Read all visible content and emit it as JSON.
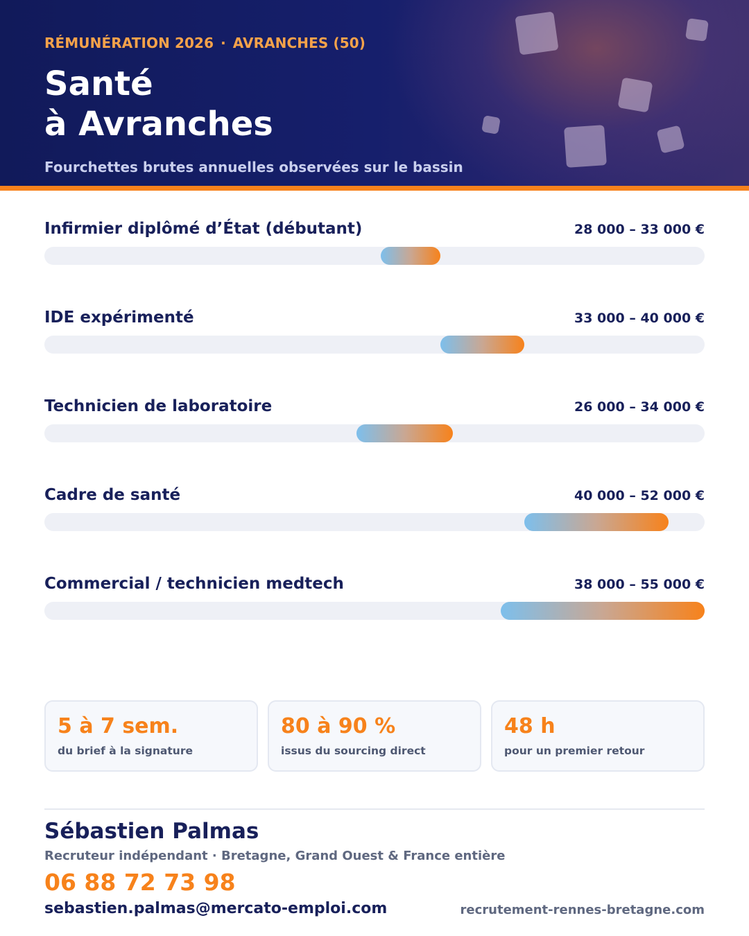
{
  "header": {
    "eyebrow_left": "RÉMUNÉRATION 2026",
    "eyebrow_separator": "·",
    "eyebrow_right": "AVRANCHES (50)",
    "title_line1": "Santé",
    "title_line2": "à Avranches",
    "subtitle": "Fourchettes brutes annuelles observées sur le bassin"
  },
  "colors": {
    "navy": "#18205a",
    "accent_orange": "#f7821b",
    "bar_start_blue": "#7dbfec",
    "track": "#eef0f6"
  },
  "salary_scale": {
    "min": 0,
    "max": 55000,
    "unit": "€"
  },
  "rows": [
    {
      "label": "Infirmier diplômé d’État (débutant)",
      "range": "28 000 – 33 000 €",
      "low": 28000,
      "high": 33000
    },
    {
      "label": "IDE expérimenté",
      "range": "33 000 – 40 000 €",
      "low": 33000,
      "high": 40000
    },
    {
      "label": "Technicien de laboratoire",
      "range": "26 000 – 34 000 €",
      "low": 26000,
      "high": 34000
    },
    {
      "label": "Cadre de santé",
      "range": "40 000 – 52 000 €",
      "low": 40000,
      "high": 52000
    },
    {
      "label": "Commercial / technicien medtech",
      "range": "38 000 – 55 000 €",
      "low": 38000,
      "high": 55000
    }
  ],
  "stats": [
    {
      "value": "5 à 7 sem.",
      "caption": "du brief à la signature"
    },
    {
      "value": "80 à 90 %",
      "caption": "issus du sourcing direct"
    },
    {
      "value": "48 h",
      "caption": "pour un premier retour"
    }
  ],
  "contact": {
    "name": "Sébastien Palmas",
    "role": "Recruteur indépendant · Bretagne, Grand Ouest & France entière",
    "phone": "06 88 72 73 98",
    "email": "sebastien.palmas@mercato-emploi.com",
    "website": "recrutement-rennes-bretagne.com"
  }
}
